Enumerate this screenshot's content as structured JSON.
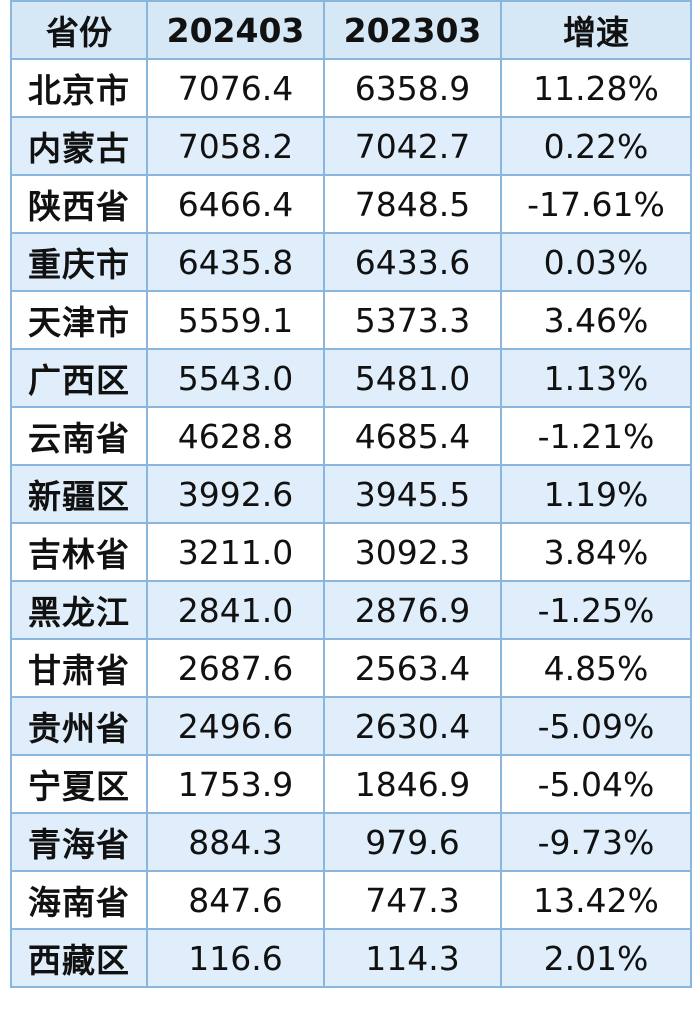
{
  "table": {
    "headers": [
      "省份",
      "202403",
      "202303",
      "增速"
    ],
    "rows": [
      [
        "北京市",
        "7076.4",
        "6358.9",
        "11.28%"
      ],
      [
        "内蒙古",
        "7058.2",
        "7042.7",
        "0.22%"
      ],
      [
        "陕西省",
        "6466.4",
        "7848.5",
        "-17.61%"
      ],
      [
        "重庆市",
        "6435.8",
        "6433.6",
        "0.03%"
      ],
      [
        "天津市",
        "5559.1",
        "5373.3",
        "3.46%"
      ],
      [
        "广西区",
        "5543.0",
        "5481.0",
        "1.13%"
      ],
      [
        "云南省",
        "4628.8",
        "4685.4",
        "-1.21%"
      ],
      [
        "新疆区",
        "3992.6",
        "3945.5",
        "1.19%"
      ],
      [
        "吉林省",
        "3211.0",
        "3092.3",
        "3.84%"
      ],
      [
        "黑龙江",
        "2841.0",
        "2876.9",
        "-1.25%"
      ],
      [
        "甘肃省",
        "2687.6",
        "2563.4",
        "4.85%"
      ],
      [
        "贵州省",
        "2496.6",
        "2630.4",
        "-5.09%"
      ],
      [
        "宁夏区",
        "1753.9",
        "1846.9",
        "-5.04%"
      ],
      [
        "青海省",
        "884.3",
        "979.6",
        "-9.73%"
      ],
      [
        "海南省",
        "847.6",
        "747.3",
        "13.42%"
      ],
      [
        "西藏区",
        "116.6",
        "114.3",
        "2.01%"
      ]
    ]
  },
  "colors": {
    "border": "#8ab6dd",
    "header_bg": "#d6e7f6",
    "stripe_bg": "#dfeefa",
    "text": "#111111"
  }
}
